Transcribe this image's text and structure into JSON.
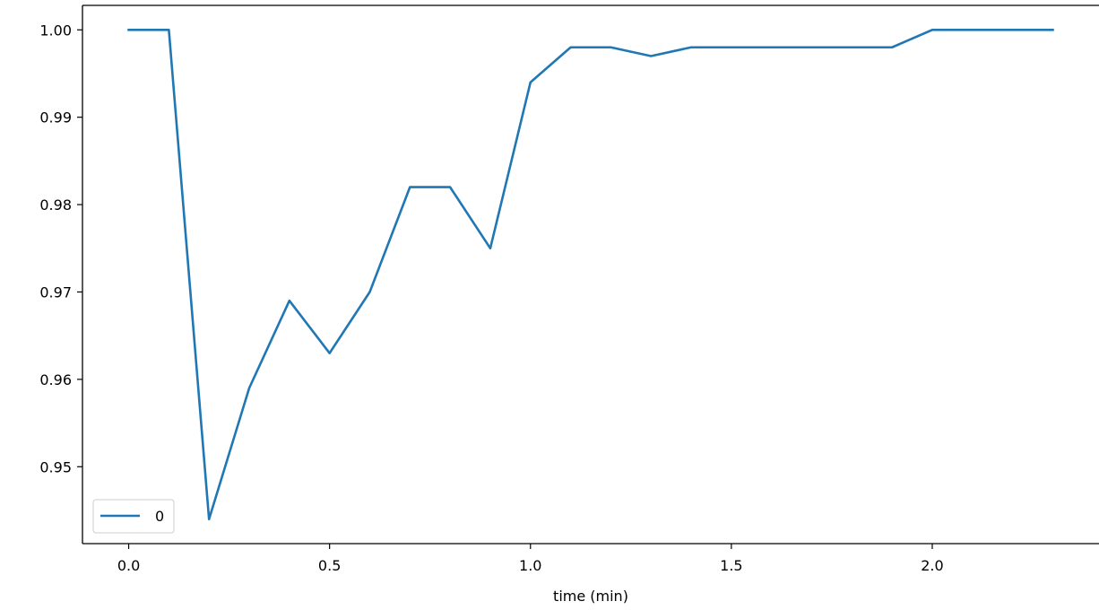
{
  "chart_data": {
    "type": "line",
    "title": "",
    "xlabel": "time (min)",
    "ylabel": "",
    "xlim": [
      -0.115,
      2.415
    ],
    "ylim": [
      0.9412,
      1.0028
    ],
    "x_ticks": [
      0.0,
      0.5,
      1.0,
      1.5,
      2.0
    ],
    "x_tick_labels": [
      "0.0",
      "0.5",
      "1.0",
      "1.5",
      "2.0"
    ],
    "y_ticks": [
      0.95,
      0.96,
      0.97,
      0.98,
      0.99,
      1.0
    ],
    "y_tick_labels": [
      "0.95",
      "0.96",
      "0.97",
      "0.98",
      "0.99",
      "1.00"
    ],
    "grid": false,
    "legend": {
      "position": "lower-left"
    },
    "series": [
      {
        "name": "0",
        "color": "#1f77b4",
        "x": [
          0.0,
          0.1,
          0.2,
          0.3,
          0.4,
          0.5,
          0.6,
          0.7,
          0.8,
          0.9,
          1.0,
          1.1,
          1.2,
          1.3,
          1.4,
          1.5,
          1.6,
          1.7,
          1.8,
          1.9,
          2.0,
          2.1,
          2.2,
          2.3
        ],
        "y": [
          1.0,
          1.0,
          0.944,
          0.959,
          0.969,
          0.963,
          0.97,
          0.982,
          0.982,
          0.975,
          0.994,
          0.998,
          0.998,
          0.997,
          0.998,
          0.998,
          0.998,
          0.998,
          0.998,
          0.998,
          1.0,
          1.0,
          1.0,
          1.0
        ]
      }
    ]
  }
}
